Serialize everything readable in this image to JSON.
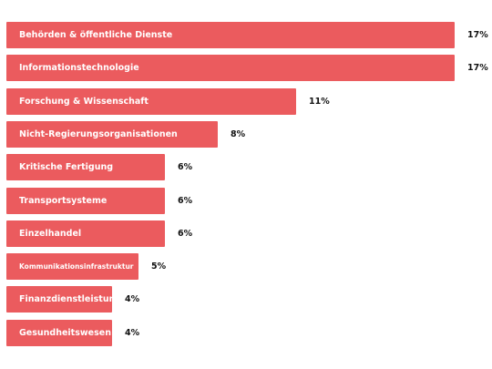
{
  "chart_data": {
    "type": "bar",
    "orientation": "horizontal",
    "categories": [
      "Behörden & öffentliche Dienste",
      "Informationstechnologie",
      "Forschung & Wissenschaft",
      "Nicht-Regierungsorganisationen",
      "Kritische Fertigung",
      "Transportsysteme",
      "Einzelhandel",
      "Kommunikationsinfrastruktur",
      "Finanzdienstleistungen",
      "Gesundheitswesen"
    ],
    "values": [
      17,
      17,
      11,
      8,
      6,
      6,
      6,
      5,
      4,
      4
    ],
    "value_labels": [
      "17%",
      "17%",
      "11%",
      "8%",
      "6%",
      "6%",
      "6%",
      "5%",
      "4%",
      "4%"
    ],
    "unit": "%",
    "bar_color": "#eb5b5e",
    "label_color": "#ffffff",
    "value_label_color": "#111111",
    "grid": false,
    "legend": false
  }
}
